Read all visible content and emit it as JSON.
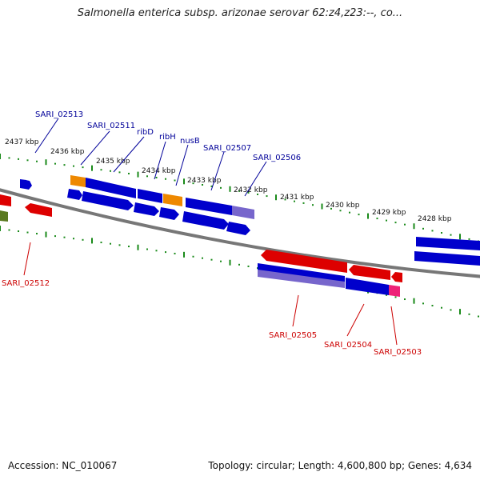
{
  "title": "Salmonella enterica subsp. arizonae serovar 62:z4,z23:--, co...",
  "footer": {
    "accession": "Accession: NC_010067",
    "stats": "Topology: circular; Length: 4,600,800 bp; Genes: 4,634"
  },
  "colors": {
    "backbone": "#777777",
    "tick": "#1a8a1a",
    "kbp_label": "#111111",
    "gene_blue": "#0000cc",
    "gene_red": "#dd0000",
    "gene_orange": "#ee8800",
    "gene_purple": "#7766cc",
    "gene_olive": "#5a7a20",
    "gene_pink": "#ee2277",
    "label_forward": "#000099",
    "label_reverse": "#cc0000"
  },
  "kbp_markers": [
    "2437 kbp",
    "2436 kbp",
    "2435 kbp",
    "2434 kbp",
    "2433 kbp",
    "2432 kbp",
    "2431 kbp",
    "2430 kbp",
    "2429 kbp",
    "2428 kbp"
  ],
  "gene_labels_top": [
    "SARI_02513",
    "SARI_02511",
    "ribD",
    "ribH",
    "nusB",
    "SARI_02507",
    "SARI_02506"
  ],
  "gene_labels_bottom": [
    "SARI_02512",
    "SARI_02505",
    "SARI_02504",
    "SARI_02503"
  ]
}
